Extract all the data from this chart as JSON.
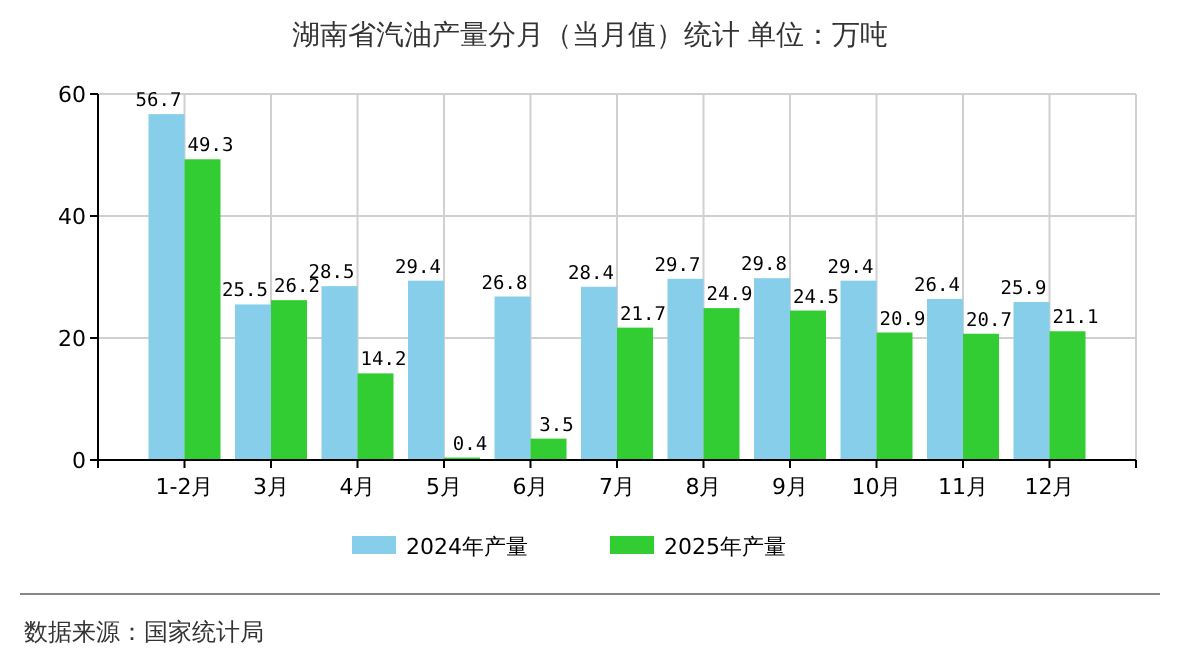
{
  "chart_data": {
    "type": "bar",
    "title": "湖南省汽油产量分月（当月值）统计  单位：万吨",
    "categories": [
      "1-2月",
      "3月",
      "4月",
      "5月",
      "6月",
      "7月",
      "8月",
      "9月",
      "10月",
      "11月",
      "12月"
    ],
    "series": [
      {
        "name": "2024年产量",
        "color": "#87ceeb",
        "values": [
          56.7,
          25.5,
          28.5,
          29.4,
          26.8,
          28.4,
          29.7,
          29.8,
          29.4,
          26.4,
          25.9
        ]
      },
      {
        "name": "2025年产量",
        "color": "#32cd32",
        "values": [
          49.3,
          26.2,
          14.2,
          0.4,
          3.5,
          21.7,
          24.9,
          24.5,
          20.9,
          20.7,
          21.1
        ]
      }
    ],
    "ylim": [
      0,
      60
    ],
    "yticks": [
      0,
      20,
      40,
      60
    ],
    "grid": true,
    "legend": "bottom",
    "data_labels": true,
    "annotations": [
      "数据来源：国家统计局"
    ]
  }
}
